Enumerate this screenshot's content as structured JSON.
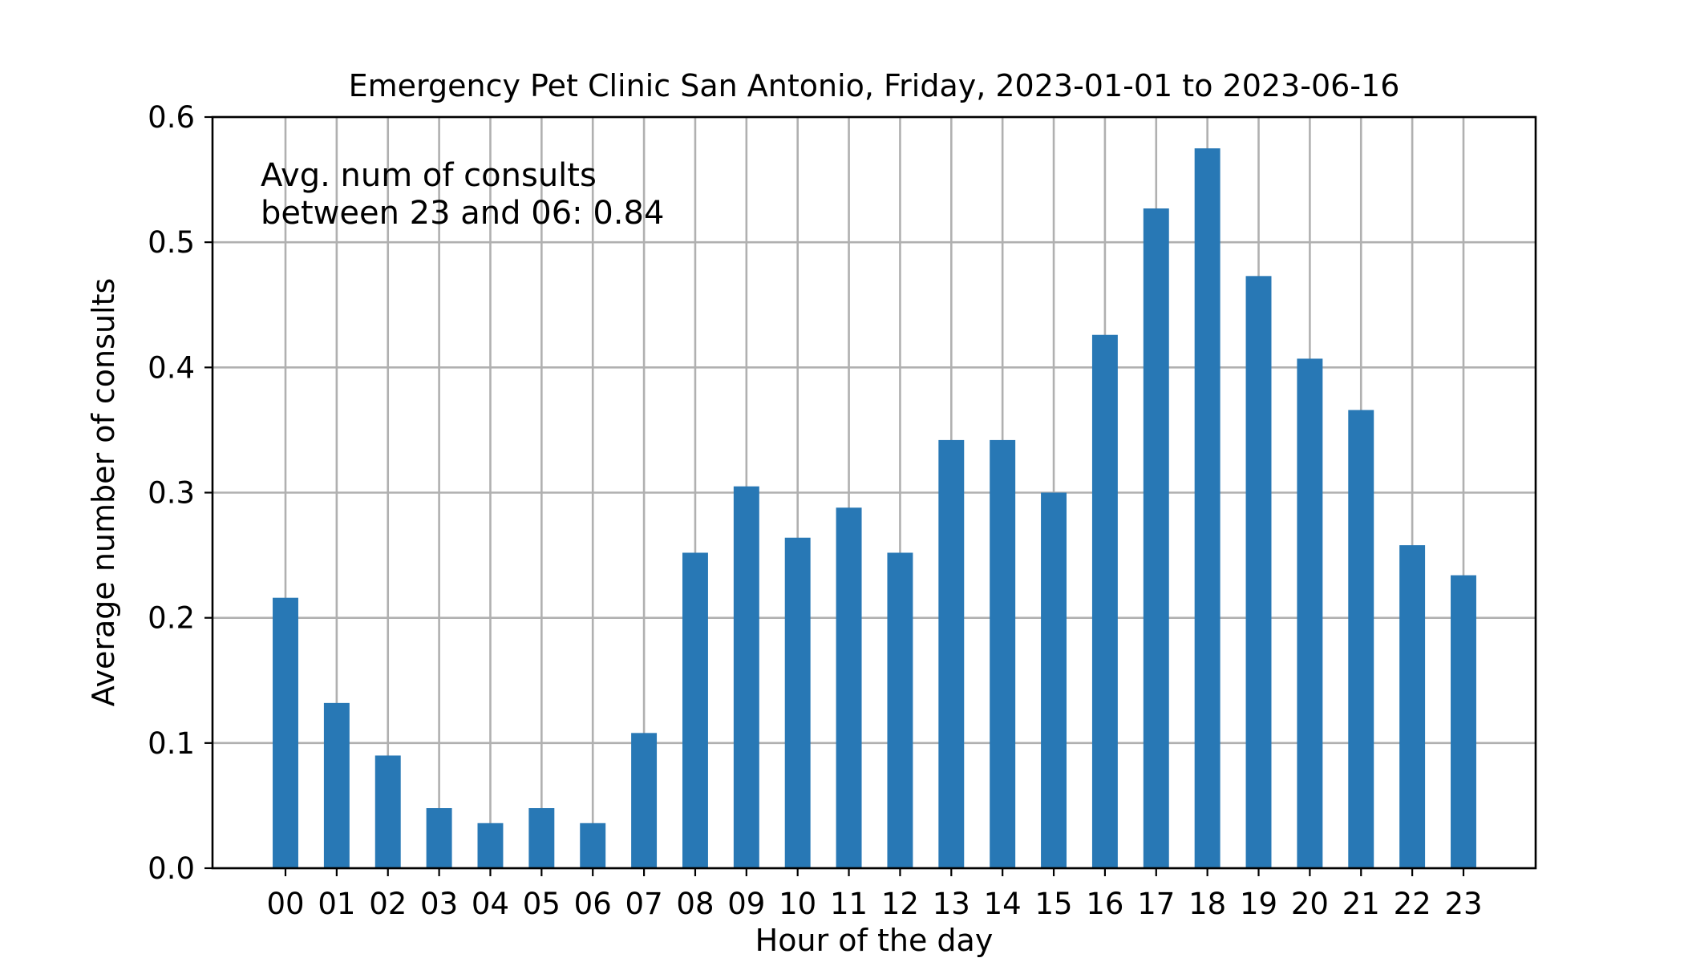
{
  "chart_data": {
    "type": "bar",
    "title": "Emergency Pet Clinic San Antonio, Friday, 2023-01-01 to 2023-06-16",
    "xlabel": "Hour of the day",
    "ylabel": "Average number of consults",
    "categories": [
      "00",
      "01",
      "02",
      "03",
      "04",
      "05",
      "06",
      "07",
      "08",
      "09",
      "10",
      "11",
      "12",
      "13",
      "14",
      "15",
      "16",
      "17",
      "18",
      "19",
      "20",
      "21",
      "22",
      "23"
    ],
    "values": [
      0.216,
      0.132,
      0.09,
      0.048,
      0.036,
      0.048,
      0.036,
      0.108,
      0.252,
      0.305,
      0.264,
      0.288,
      0.252,
      0.342,
      0.342,
      0.3,
      0.426,
      0.527,
      0.575,
      0.473,
      0.407,
      0.366,
      0.258,
      0.234
    ],
    "ylim": [
      0,
      0.6
    ],
    "yticks": [
      0.0,
      0.1,
      0.2,
      0.3,
      0.4,
      0.5,
      0.6
    ],
    "ytick_labels": [
      "0.0",
      "0.1",
      "0.2",
      "0.3",
      "0.4",
      "0.5",
      "0.6"
    ],
    "grid": true,
    "bar_color": "#2878b5",
    "annotation": {
      "line1": "Avg. num of consults",
      "line2": "between 23 and 06: 0.84",
      "placement": "top-left"
    }
  }
}
